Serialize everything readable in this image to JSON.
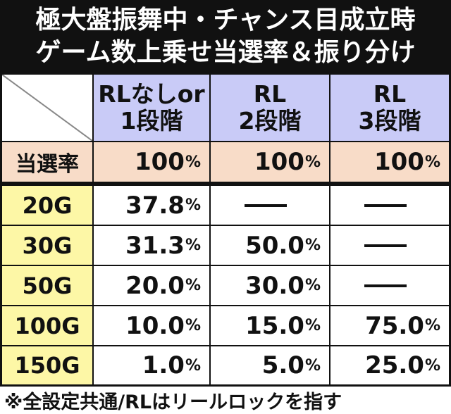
{
  "title": {
    "line1": "極大盤振舞中・チャンス目成立時",
    "line2": "ゲーム数上乗せ当選率＆振り分け"
  },
  "columns": [
    {
      "line1": "RLなしor",
      "line2": "1段階"
    },
    {
      "line1": "RL",
      "line2": "2段階"
    },
    {
      "line1": "RL",
      "line2": "3段階"
    }
  ],
  "win_rate": {
    "label": "当選率",
    "values": [
      "100",
      "100",
      "100"
    ]
  },
  "pct_sign": "%",
  "rows": [
    {
      "label": "20G",
      "values": [
        "37.8",
        "—",
        "—"
      ]
    },
    {
      "label": "30G",
      "values": [
        "31.3",
        "50.0",
        "—"
      ]
    },
    {
      "label": "50G",
      "values": [
        "20.0",
        "30.0",
        "—"
      ]
    },
    {
      "label": "100G",
      "values": [
        "10.0",
        "15.0",
        "75.0"
      ]
    },
    {
      "label": "150G",
      "values": [
        "1.0",
        "5.0",
        "25.0"
      ]
    }
  ],
  "footnote": "※全設定共通/RLはリールロックを指す",
  "colors": {
    "header_bg": "#c9cbf7",
    "win_rate_bg": "#f8dcc8",
    "row_label_bg": "#fdf7a6",
    "title_bg": "#111111"
  }
}
